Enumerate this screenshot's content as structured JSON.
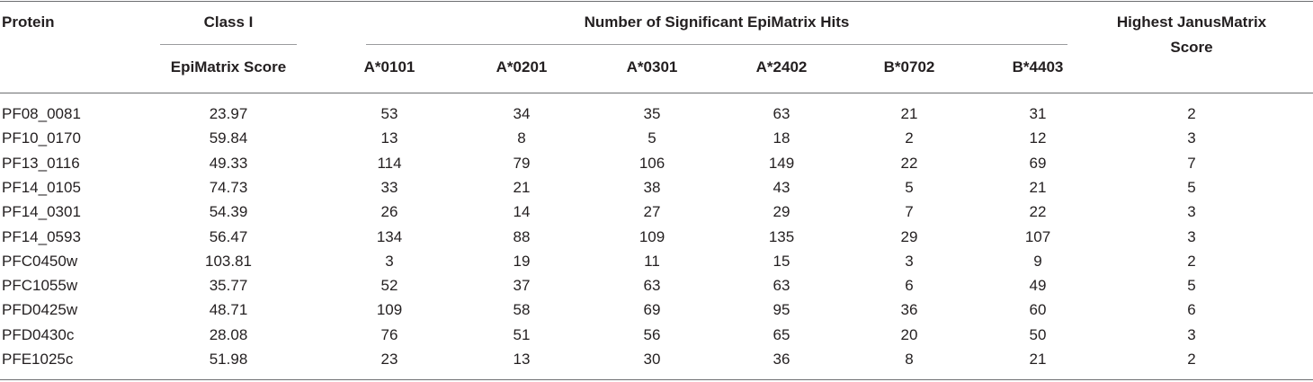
{
  "table": {
    "headers": {
      "protein": "Protein",
      "class1": "Class I",
      "epimatrix_score": "EpiMatrix Score",
      "hits_group": "Number of Significant EpiMatrix Hits",
      "alleles": [
        "A*0101",
        "A*0201",
        "A*0301",
        "A*2402",
        "B*0702",
        "B*4403"
      ],
      "janus_line1": "Highest JanusMatrix",
      "janus_line2": "Score"
    },
    "rows": [
      {
        "protein": "PF08_0081",
        "score": "23.97",
        "hits": [
          "53",
          "34",
          "35",
          "63",
          "21",
          "31"
        ],
        "janus": "2"
      },
      {
        "protein": "PF10_0170",
        "score": "59.84",
        "hits": [
          "13",
          "8",
          "5",
          "18",
          "2",
          "12"
        ],
        "janus": "3"
      },
      {
        "protein": "PF13_0116",
        "score": "49.33",
        "hits": [
          "114",
          "79",
          "106",
          "149",
          "22",
          "69"
        ],
        "janus": "7"
      },
      {
        "protein": "PF14_0105",
        "score": "74.73",
        "hits": [
          "33",
          "21",
          "38",
          "43",
          "5",
          "21"
        ],
        "janus": "5"
      },
      {
        "protein": "PF14_0301",
        "score": "54.39",
        "hits": [
          "26",
          "14",
          "27",
          "29",
          "7",
          "22"
        ],
        "janus": "3"
      },
      {
        "protein": "PF14_0593",
        "score": "56.47",
        "hits": [
          "134",
          "88",
          "109",
          "135",
          "29",
          "107"
        ],
        "janus": "3"
      },
      {
        "protein": "PFC0450w",
        "score": "103.81",
        "hits": [
          "3",
          "19",
          "11",
          "15",
          "3",
          "9"
        ],
        "janus": "2"
      },
      {
        "protein": "PFC1055w",
        "score": "35.77",
        "hits": [
          "52",
          "37",
          "63",
          "63",
          "6",
          "49"
        ],
        "janus": "5"
      },
      {
        "protein": "PFD0425w",
        "score": "48.71",
        "hits": [
          "109",
          "58",
          "69",
          "95",
          "36",
          "60"
        ],
        "janus": "6"
      },
      {
        "protein": "PFD0430c",
        "score": "28.08",
        "hits": [
          "76",
          "51",
          "56",
          "65",
          "20",
          "50"
        ],
        "janus": "3"
      },
      {
        "protein": "PFE1025c",
        "score": "51.98",
        "hits": [
          "23",
          "13",
          "30",
          "36",
          "8",
          "21"
        ],
        "janus": "2"
      }
    ]
  }
}
